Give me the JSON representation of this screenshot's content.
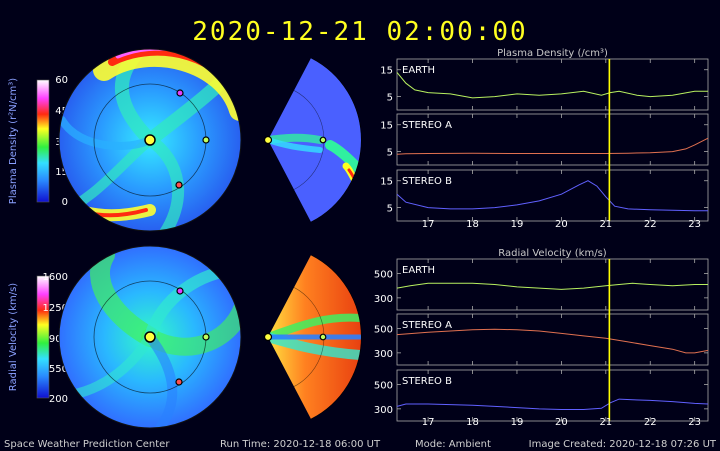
{
  "header": {
    "timestamp": "2020-12-21  02:00:00"
  },
  "footer": {
    "org": "Space Weather Prediction Center",
    "run_time": "Run Time: 2020-12-18 06:00 UT",
    "mode": "Mode: Ambient",
    "image_created": "Image Created: 2020-12-18 07:26 UT"
  },
  "colorbars": {
    "density": {
      "label": "Plasma Density (r²N/cm³)",
      "ticks": [
        "60",
        "45",
        "30",
        "15",
        "0"
      ]
    },
    "velocity": {
      "label": "Radial Velocity (km/s)",
      "ticks": [
        "1600",
        "1250",
        "900",
        "550",
        "200"
      ]
    }
  },
  "colors": {
    "background": "#000018",
    "earth_line": "#b8f060",
    "stereo_a_line": "#e07050",
    "stereo_b_line": "#6060ff",
    "current_time_marker": "#ffff00"
  },
  "chart_data": [
    {
      "type": "line",
      "title": "Plasma Density (/cm³)",
      "xlabel": "",
      "ylabel": "",
      "x_ticks": [
        "17",
        "18",
        "19",
        "20",
        "21",
        "22",
        "23"
      ],
      "xlim": [
        16.3,
        23.3
      ],
      "current_time": 21.08,
      "panels": [
        {
          "name": "EARTH",
          "color": "#b8f060",
          "ylim": [
            0,
            19
          ],
          "y_ticks": [
            "15",
            "5"
          ],
          "y_tick_values": [
            15,
            5
          ],
          "x": [
            16.3,
            16.5,
            16.7,
            17.0,
            17.5,
            18.0,
            18.5,
            19.0,
            19.5,
            20.0,
            20.5,
            20.9,
            21.1,
            21.3,
            21.7,
            22.0,
            22.5,
            23.0,
            23.3
          ],
          "values": [
            14,
            10,
            7.5,
            6.5,
            6,
            4.5,
            5,
            6,
            5.5,
            6,
            7,
            5.5,
            6.5,
            7,
            5.5,
            5,
            5.5,
            7,
            7
          ]
        },
        {
          "name": "STEREO A",
          "color": "#e07050",
          "ylim": [
            0,
            19
          ],
          "y_ticks": [
            "15",
            "5"
          ],
          "y_tick_values": [
            15,
            5
          ],
          "x": [
            16.3,
            16.5,
            17.0,
            18.0,
            19.0,
            20.0,
            21.0,
            21.5,
            22.0,
            22.5,
            22.8,
            23.0,
            23.3
          ],
          "values": [
            4,
            4.2,
            4.3,
            4.4,
            4.3,
            4.3,
            4.3,
            4.4,
            4.6,
            5,
            6,
            7.5,
            10
          ]
        },
        {
          "name": "STEREO B",
          "color": "#6060ff",
          "ylim": [
            0,
            19
          ],
          "y_ticks": [
            "15",
            "5"
          ],
          "y_tick_values": [
            15,
            5
          ],
          "x": [
            16.3,
            16.5,
            17.0,
            17.5,
            18.0,
            18.5,
            19.0,
            19.5,
            20.0,
            20.4,
            20.6,
            20.8,
            21.0,
            21.2,
            21.5,
            22.0,
            22.5,
            23.0,
            23.3
          ],
          "values": [
            10,
            7,
            5,
            4.5,
            4.5,
            5,
            6,
            7.5,
            10,
            13.5,
            15,
            13,
            9,
            5.5,
            4.5,
            4.2,
            4,
            3.8,
            3.8
          ]
        }
      ]
    },
    {
      "type": "line",
      "title": "Radial Velocity (km/s)",
      "xlabel": "",
      "ylabel": "",
      "x_ticks": [
        "17",
        "18",
        "19",
        "20",
        "21",
        "22",
        "23"
      ],
      "xlim": [
        16.3,
        23.3
      ],
      "current_time": 21.08,
      "panels": [
        {
          "name": "EARTH",
          "color": "#b8f060",
          "ylim": [
            200,
            620
          ],
          "y_ticks": [
            "500",
            "300"
          ],
          "y_tick_values": [
            500,
            300
          ],
          "x": [
            16.3,
            16.6,
            17.0,
            17.5,
            18.0,
            18.5,
            19.0,
            19.5,
            20.0,
            20.5,
            21.0,
            21.3,
            21.6,
            22.0,
            22.5,
            23.0,
            23.3
          ],
          "values": [
            380,
            400,
            420,
            420,
            420,
            410,
            390,
            380,
            370,
            380,
            400,
            410,
            420,
            410,
            400,
            410,
            410
          ]
        },
        {
          "name": "STEREO A",
          "color": "#e07050",
          "ylim": [
            200,
            620
          ],
          "y_ticks": [
            "500",
            "300"
          ],
          "y_tick_values": [
            500,
            300
          ],
          "x": [
            16.3,
            17.0,
            17.5,
            18.0,
            18.5,
            19.0,
            19.5,
            20.0,
            20.5,
            21.0,
            21.5,
            22.0,
            22.5,
            22.8,
            23.0,
            23.3
          ],
          "values": [
            450,
            470,
            480,
            490,
            495,
            490,
            480,
            460,
            440,
            420,
            390,
            360,
            330,
            300,
            300,
            320
          ]
        },
        {
          "name": "STEREO B",
          "color": "#6060ff",
          "ylim": [
            200,
            620
          ],
          "y_ticks": [
            "500",
            "300"
          ],
          "y_tick_values": [
            500,
            300
          ],
          "x": [
            16.3,
            16.5,
            17.0,
            17.5,
            18.0,
            18.5,
            19.0,
            19.5,
            20.0,
            20.5,
            20.9,
            21.1,
            21.3,
            21.6,
            22.0,
            22.5,
            23.0,
            23.3
          ],
          "values": [
            320,
            340,
            340,
            335,
            330,
            320,
            310,
            300,
            295,
            295,
            305,
            350,
            380,
            375,
            370,
            360,
            345,
            340
          ]
        }
      ]
    }
  ]
}
